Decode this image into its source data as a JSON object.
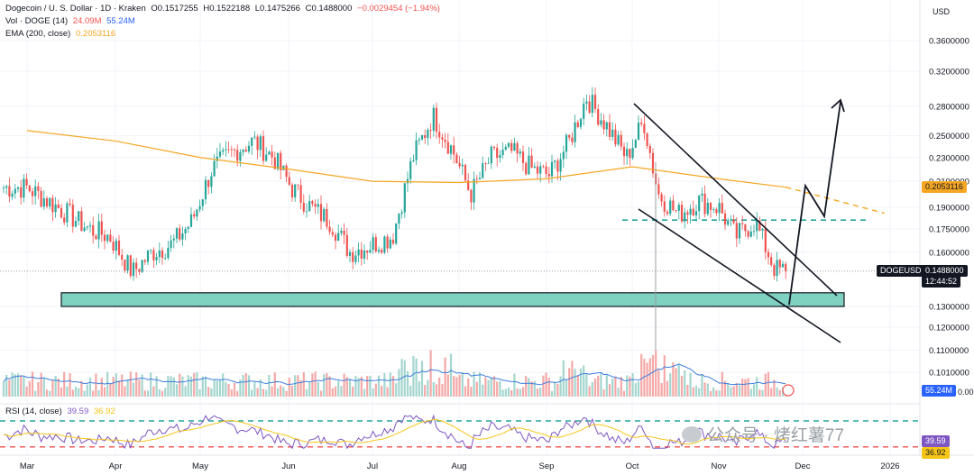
{
  "header": {
    "symbol": "Dogecoin / U. S. Dollar · 1D · Kraken",
    "open": "O0.1517255",
    "high": "H0.1522188",
    "low": "L0.1475266",
    "close": "C0.1488000",
    "change": "−0.0029454 (−1.94%)",
    "vol_label": "Vol · DOGE (14)",
    "vol_value1": "24.09M",
    "vol_value2": "55.24M",
    "ema_label": "EMA (200, close)",
    "ema_value": "0.2053116",
    "rsi_label": "RSI (14, close)",
    "rsi_value1": "39.59",
    "rsi_value2": "36.92"
  },
  "currency": "USD",
  "tags": {
    "symbol": "DOGEUSD",
    "price": "0.1488000",
    "countdown": "12:44:52",
    "ema": "0.2053116",
    "vol": "55.24M",
    "rsi1": "39.59",
    "rsi2": "36.92",
    "vol_axis": "0.00"
  },
  "watermark": "公众号 · 烤红薯77",
  "colors": {
    "up": "#26a69a",
    "down": "#ef5350",
    "ema": "#f5a623",
    "vol_ma": "#3d7ede",
    "rsi": "#7e57c2",
    "rsi_ma": "#f5c518",
    "zone": "#7fd1c0",
    "price_tag": "#131722",
    "ema_tag": "#f5a623",
    "vol_tag": "#2962ff"
  },
  "chart_data": {
    "type": "candlestick",
    "x_labels": [
      "Mar",
      "Apr",
      "May",
      "Jun",
      "Jul",
      "Aug",
      "Sep",
      "Oct",
      "Nov",
      "Dec",
      "2026"
    ],
    "y_ticks": [
      0.36,
      0.32,
      0.28,
      0.25,
      0.23,
      0.21,
      0.19,
      0.175,
      0.16,
      0.13,
      0.12,
      0.11,
      0.101
    ],
    "y_tick_labels": [
      "0.3600000",
      "0.3200000",
      "0.2800000",
      "0.2500000",
      "0.2300000",
      "0.2100000",
      "0.1900000",
      "0.1750000",
      "0.1600000",
      "0.1300000",
      "0.1200000",
      "0.1100000",
      "0.1010000"
    ],
    "scale": "log",
    "series": [
      {
        "name": "DOGEUSD",
        "close_path": [
          [
            "Mar-01",
            0.205
          ],
          [
            "Mar-08",
            0.195
          ],
          [
            "Mar-15",
            0.185
          ],
          [
            "Mar-22",
            0.175
          ],
          [
            "Mar-29",
            0.17
          ],
          [
            "Apr-07",
            0.148
          ],
          [
            "Apr-14",
            0.16
          ],
          [
            "Apr-21",
            0.165
          ],
          [
            "Apr-28",
            0.18
          ],
          [
            "May-05",
            0.22
          ],
          [
            "May-12",
            0.235
          ],
          [
            "May-19",
            0.245
          ],
          [
            "May-26",
            0.23
          ],
          [
            "Jun-02",
            0.205
          ],
          [
            "Jun-09",
            0.19
          ],
          [
            "Jun-16",
            0.18
          ],
          [
            "Jun-23",
            0.16
          ],
          [
            "Jul-01",
            0.165
          ],
          [
            "Jul-08",
            0.17
          ],
          [
            "Jul-15",
            0.23
          ],
          [
            "Jul-22",
            0.27
          ],
          [
            "Jul-29",
            0.235
          ],
          [
            "Aug-05",
            0.2
          ],
          [
            "Aug-12",
            0.23
          ],
          [
            "Aug-19",
            0.235
          ],
          [
            "Aug-26",
            0.22
          ],
          [
            "Sep-02",
            0.215
          ],
          [
            "Sep-09",
            0.245
          ],
          [
            "Sep-15",
            0.29
          ],
          [
            "Sep-22",
            0.26
          ],
          [
            "Sep-29",
            0.23
          ],
          [
            "Oct-05",
            0.265
          ],
          [
            "Oct-10",
            0.2
          ],
          [
            "Oct-17",
            0.185
          ],
          [
            "Oct-24",
            0.195
          ],
          [
            "Oct-31",
            0.19
          ],
          [
            "Nov-07",
            0.17
          ],
          [
            "Nov-14",
            0.18
          ],
          [
            "Nov-21",
            0.15
          ],
          [
            "Nov-25",
            0.1488
          ]
        ]
      },
      {
        "name": "EMA (200, close)",
        "close_path": [
          [
            "Mar-01",
            0.255
          ],
          [
            "Apr-01",
            0.245
          ],
          [
            "May-01",
            0.23
          ],
          [
            "Jun-01",
            0.22
          ],
          [
            "Jul-01",
            0.21
          ],
          [
            "Aug-01",
            0.209
          ],
          [
            "Sep-01",
            0.212
          ],
          [
            "Oct-01",
            0.222
          ],
          [
            "Nov-01",
            0.212
          ],
          [
            "Nov-25",
            0.2053
          ],
          [
            "Dec-08",
            0.195
          ]
        ]
      }
    ],
    "support_zone": [
      0.13,
      0.137
    ],
    "resistance_level": 0.181
  }
}
